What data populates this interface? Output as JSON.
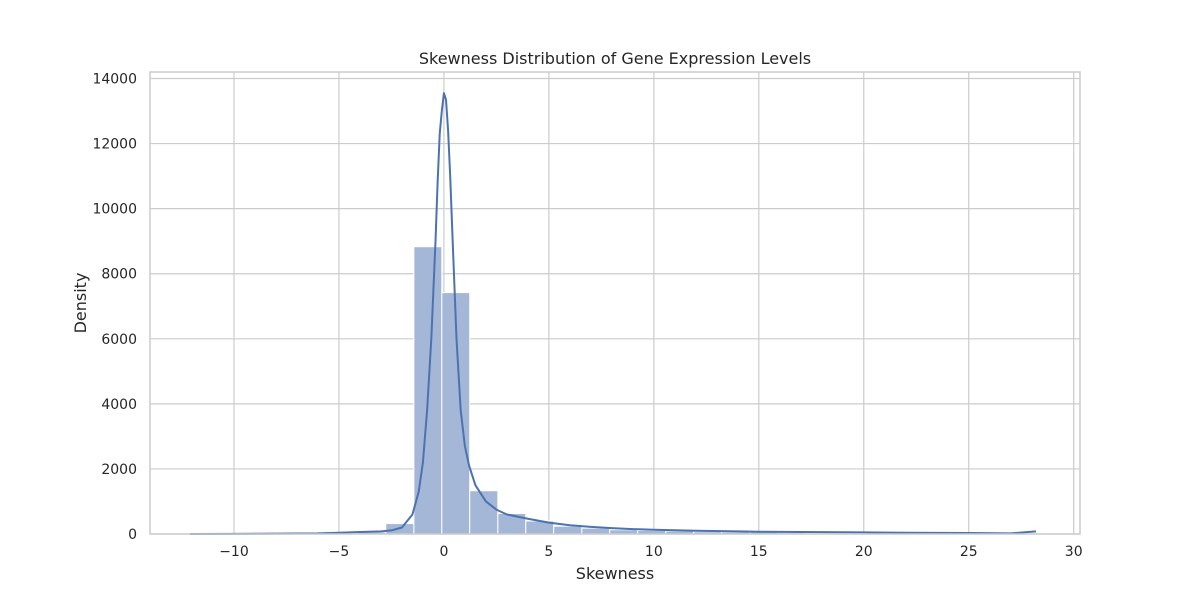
{
  "chart_data": {
    "type": "bar",
    "title": "Skewness Distribution of Gene Expression Levels",
    "xlabel": "Skewness",
    "ylabel": "Density",
    "xlim": [
      -14,
      30.3
    ],
    "ylim": [
      0,
      14200
    ],
    "grid": true,
    "x_ticks": [
      -10,
      -5,
      0,
      5,
      10,
      15,
      20,
      25,
      30
    ],
    "x_tick_labels": [
      "−10",
      "−5",
      "0",
      "5",
      "10",
      "15",
      "20",
      "25",
      "30"
    ],
    "y_ticks": [
      0,
      2000,
      4000,
      6000,
      8000,
      10000,
      12000,
      14000
    ],
    "y_tick_labels": [
      "0",
      "2000",
      "4000",
      "6000",
      "8000",
      "10000",
      "12000",
      "14000"
    ],
    "colors": {
      "bars": "#a4b7d6",
      "line": "#4c72b0",
      "grid": "#cccccc",
      "frame": "#cccccc"
    },
    "histogram": {
      "bin_edges": [
        -12.1,
        -10.77,
        -9.43,
        -8.1,
        -6.77,
        -5.43,
        -4.1,
        -2.77,
        -1.43,
        -0.1,
        1.23,
        2.57,
        3.9,
        5.23,
        6.57,
        7.9,
        9.23,
        10.57,
        11.9,
        13.23,
        14.57,
        15.9,
        17.23,
        18.57,
        19.9,
        21.23,
        22.57,
        23.9,
        25.23,
        26.57,
        27.9
      ],
      "values": [
        10,
        10,
        10,
        10,
        10,
        10,
        60,
        320,
        8830,
        7420,
        1330,
        630,
        400,
        240,
        180,
        130,
        110,
        90,
        70,
        60,
        60,
        40,
        30,
        30,
        30,
        20,
        20,
        20,
        20,
        20
      ]
    },
    "series": [
      {
        "type": "line",
        "x": [
          -12.1,
          -10,
          -8,
          -6,
          -5,
          -4,
          -3,
          -2.5,
          -2,
          -1.5,
          -1.2,
          -1,
          -0.8,
          -0.6,
          -0.4,
          -0.3,
          -0.2,
          -0.1,
          0,
          0.1,
          0.2,
          0.3,
          0.4,
          0.6,
          0.8,
          1,
          1.2,
          1.5,
          2,
          2.5,
          3,
          4,
          5,
          6,
          7,
          8,
          9,
          10,
          12,
          14,
          15,
          17,
          20,
          22,
          25,
          27,
          28.2
        ],
        "values": [
          0,
          5,
          10,
          20,
          40,
          60,
          80,
          110,
          200,
          600,
          1300,
          2200,
          3800,
          6000,
          9000,
          10800,
          12300,
          13000,
          13550,
          13350,
          12400,
          11000,
          9300,
          6000,
          3800,
          2700,
          2100,
          1500,
          1000,
          750,
          600,
          470,
          350,
          270,
          220,
          180,
          150,
          130,
          100,
          80,
          70,
          60,
          50,
          40,
          30,
          20,
          80
        ]
      }
    ]
  }
}
